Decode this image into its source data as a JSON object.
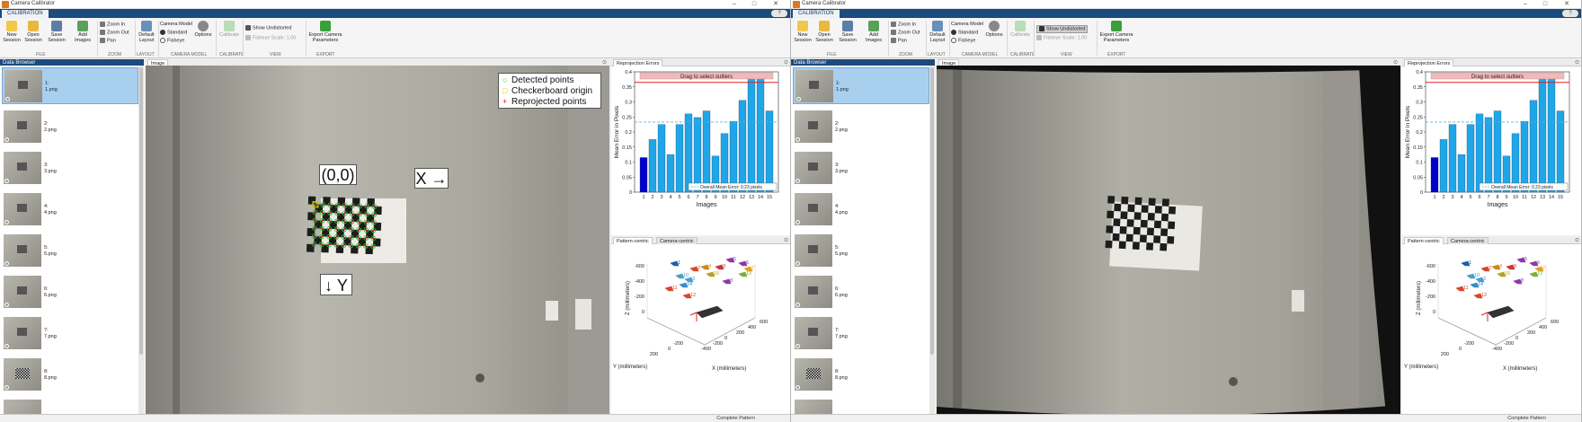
{
  "app": {
    "title": "Camera Calibrator"
  },
  "window_controls": [
    "–",
    "□",
    "✕"
  ],
  "toolstrip_tab": "CALIBRATION",
  "help_label": "?",
  "ribbon": {
    "file": {
      "new_session": "New Session",
      "open_session": "Open Session",
      "save_session": "Save Session",
      "add_images": "Add Images",
      "section": "FILE"
    },
    "zoom": {
      "zoom_in": "Zoom In",
      "zoom_out": "Zoom Out",
      "pan": "Pan",
      "section": "ZOOM"
    },
    "layout": {
      "default_layout": "Default Layout",
      "section": "LAYOUT"
    },
    "camera_model": {
      "title": "Camera Model",
      "standard": "Standard",
      "fisheye": "Fisheye",
      "options": "Options",
      "section": "CAMERA MODEL"
    },
    "calibrate": {
      "button": "Calibrate",
      "section": "CALIBRATE"
    },
    "view": {
      "show_undistorted_1": "Show Undistorted",
      "show_undistorted_2": "Show Undistorted",
      "fisheye_scale": "Fisheye Scale: 1.00",
      "section": "VIEW"
    },
    "export": {
      "button": "Export Camera Parameters",
      "section": "EXPORT"
    }
  },
  "data_browser": {
    "title": "Data Browser",
    "items": [
      {
        "index": "1:",
        "name": "1.png"
      },
      {
        "index": "2:",
        "name": "2.png"
      },
      {
        "index": "3:",
        "name": "3.png"
      },
      {
        "index": "4:",
        "name": "4.png"
      },
      {
        "index": "5:",
        "name": "5.png"
      },
      {
        "index": "6:",
        "name": "6.png"
      },
      {
        "index": "7:",
        "name": "7.png"
      },
      {
        "index": "8:",
        "name": "8.png"
      }
    ]
  },
  "image_panel": {
    "tab": "Image"
  },
  "overlay_legend": {
    "detected": "Detected points",
    "origin": "Checkerboard origin",
    "reprojected": "Reprojected points"
  },
  "callouts": {
    "origin": "(0,0)",
    "x_axis": "X →",
    "y_axis": "↓ Y"
  },
  "reprojection": {
    "tab": "Reprojection Errors",
    "drag_label": "Drag to select outliers",
    "overall_label": "Overall Mean Error: 0.23 pixels"
  },
  "extrinsics": {
    "tab1": "Pattern-centric",
    "tab2": "Camera-centric",
    "z_label": "Z (millimeters)",
    "x_label": "X (millimeters)",
    "y_label": "Y (millimeters)",
    "z_ticks": [
      "-600",
      "-400",
      "-200",
      "0"
    ],
    "x_ticks": [
      "-400",
      "-200",
      "0",
      "200",
      "400",
      "600"
    ],
    "y_ticks": [
      "-200",
      "0",
      "200"
    ],
    "cam_labels": [
      "1",
      "2",
      "3",
      "4",
      "5",
      "6",
      "7",
      "8",
      "9",
      "10",
      "11",
      "12",
      "13",
      "14",
      "15"
    ]
  },
  "status": {
    "w1": "Complete Pattern",
    "w2": "Complete Pattern"
  },
  "chart_data": {
    "type": "bar",
    "xlabel": "Images",
    "ylabel": "Mean Error in Pixels",
    "ylim": [
      0,
      0.4
    ],
    "yticks": [
      "0",
      "0.05",
      "0.1",
      "0.15",
      "0.2",
      "0.25",
      "0.3",
      "0.35",
      "0.4"
    ],
    "categories": [
      "1",
      "2",
      "3",
      "4",
      "5",
      "6",
      "7",
      "8",
      "9",
      "10",
      "11",
      "12",
      "13",
      "14",
      "15"
    ],
    "values": [
      0.115,
      0.175,
      0.225,
      0.125,
      0.225,
      0.26,
      0.248,
      0.27,
      0.12,
      0.195,
      0.235,
      0.305,
      0.375,
      0.38,
      0.27
    ],
    "overall_mean": 0.233,
    "selected_index": 0,
    "colors": {
      "bar": "#1fa6e8",
      "selected": "#0000cc",
      "mean_line": "#5fb3d8",
      "outlier_line": "#e02020"
    }
  }
}
